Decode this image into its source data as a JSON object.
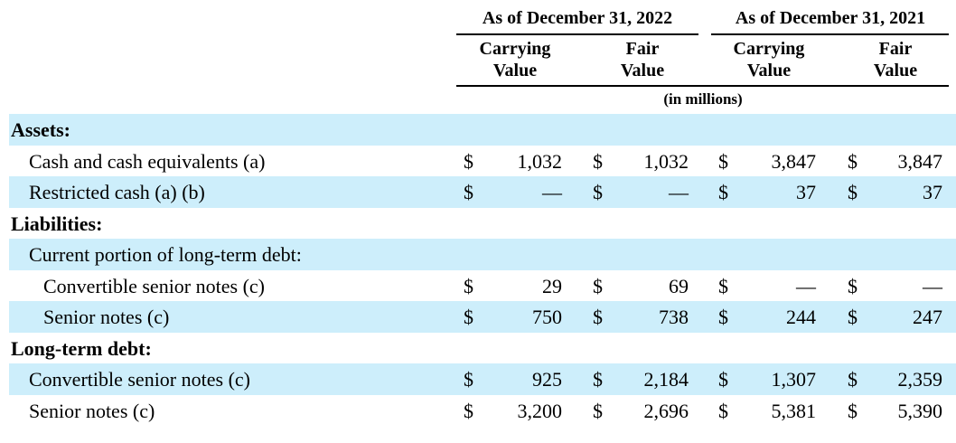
{
  "header": {
    "groups": [
      "As of December 31, 2022",
      "As of December 31, 2021"
    ],
    "columns": [
      [
        "Carrying",
        "Value"
      ],
      [
        "Fair",
        "Value"
      ],
      [
        "Carrying",
        "Value"
      ],
      [
        "Fair",
        "Value"
      ]
    ],
    "units": "(in millions)"
  },
  "table": {
    "rows": [
      {
        "label": "Assets:"
      },
      {
        "label": "Cash and cash equivalents (a)",
        "cells": [
          "$",
          "1,032",
          "$",
          "1,032",
          "$",
          "3,847",
          "$",
          "3,847"
        ]
      },
      {
        "label": "Restricted cash (a) (b)",
        "cells": [
          "$",
          "—",
          "$",
          "—",
          "$",
          "37",
          "$",
          "37"
        ]
      },
      {
        "label": "Liabilities:"
      },
      {
        "label": "Current portion of long-term debt:"
      },
      {
        "label": "Convertible senior notes (c)",
        "cells": [
          "$",
          "29",
          "$",
          "69",
          "$",
          "—",
          "$",
          "—"
        ]
      },
      {
        "label": "Senior notes (c)",
        "cells": [
          "$",
          "750",
          "$",
          "738",
          "$",
          "244",
          "$",
          "247"
        ]
      },
      {
        "label": "Long-term debt:"
      },
      {
        "label": "Convertible senior notes (c)",
        "cells": [
          "$",
          "925",
          "$",
          "2,184",
          "$",
          "1,307",
          "$",
          "2,359"
        ]
      },
      {
        "label": "Senior notes (c)",
        "cells": [
          "$",
          "3,200",
          "$",
          "2,696",
          "$",
          "5,381",
          "$",
          "5,390"
        ]
      }
    ]
  }
}
